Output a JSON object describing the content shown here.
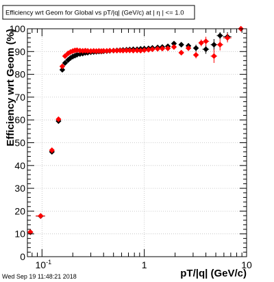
{
  "chart_data": {
    "type": "scatter",
    "title": "Efficiency wrt Geom for Global vs pT/|q| (GeV/c) at |  η | <= 1.0",
    "xlabel": "pT/|q| (GeV/c)",
    "ylabel": "Efficiency wrt Geom (%)",
    "xscale": "log",
    "xlim": [
      0.072,
      10
    ],
    "ylim": [
      0,
      100
    ],
    "x_tick_labels": [
      {
        "value": 0.1,
        "label": "10",
        "exponent": "-1"
      },
      {
        "value": 1,
        "label": "1",
        "exponent": ""
      },
      {
        "value": 10,
        "label": "10",
        "exponent": ""
      }
    ],
    "y_ticks": [
      0,
      10,
      20,
      30,
      40,
      50,
      60,
      70,
      80,
      90,
      100
    ],
    "grid": true,
    "series": [
      {
        "marker": "diamond",
        "color": "#000000",
        "points": [
          {
            "x": 0.077,
            "y": 10.7,
            "xerr": 0.003,
            "yerr": 0.6
          },
          {
            "x": 0.097,
            "y": 17.8,
            "xerr": 0.01,
            "yerr": 0.6
          },
          {
            "x": 0.125,
            "y": 46.0,
            "xerr": 0.007,
            "yerr": 0.8
          },
          {
            "x": 0.145,
            "y": 59.5,
            "xerr": 0.006,
            "yerr": 0.8
          },
          {
            "x": 0.158,
            "y": 82.0,
            "xerr": 0.005,
            "yerr": 0.8
          },
          {
            "x": 0.168,
            "y": 85.0,
            "xerr": 0.005,
            "yerr": 0.8
          },
          {
            "x": 0.18,
            "y": 86.3,
            "xerr": 0.005
          },
          {
            "x": 0.19,
            "y": 87.2,
            "xerr": 0.005
          },
          {
            "x": 0.2,
            "y": 87.8,
            "xerr": 0.005
          },
          {
            "x": 0.21,
            "y": 88.2,
            "xerr": 0.005
          },
          {
            "x": 0.22,
            "y": 88.6,
            "xerr": 0.005
          },
          {
            "x": 0.235,
            "y": 88.9,
            "xerr": 0.006
          },
          {
            "x": 0.25,
            "y": 89.1,
            "xerr": 0.006
          },
          {
            "x": 0.265,
            "y": 89.4,
            "xerr": 0.007
          },
          {
            "x": 0.28,
            "y": 89.5,
            "xerr": 0.007
          },
          {
            "x": 0.3,
            "y": 89.7,
            "xerr": 0.008
          },
          {
            "x": 0.32,
            "y": 89.8,
            "xerr": 0.008
          },
          {
            "x": 0.34,
            "y": 89.9,
            "xerr": 0.009
          },
          {
            "x": 0.36,
            "y": 90.0,
            "xerr": 0.009
          },
          {
            "x": 0.38,
            "y": 90.0,
            "xerr": 0.01
          },
          {
            "x": 0.4,
            "y": 90.1,
            "xerr": 0.01
          },
          {
            "x": 0.43,
            "y": 90.2,
            "xerr": 0.011
          },
          {
            "x": 0.46,
            "y": 90.3,
            "xerr": 0.012
          },
          {
            "x": 0.5,
            "y": 90.4,
            "xerr": 0.013
          },
          {
            "x": 0.54,
            "y": 90.5,
            "xerr": 0.014
          },
          {
            "x": 0.58,
            "y": 90.6,
            "xerr": 0.015
          },
          {
            "x": 0.62,
            "y": 90.7,
            "xerr": 0.016
          },
          {
            "x": 0.67,
            "y": 90.8,
            "xerr": 0.017
          },
          {
            "x": 0.72,
            "y": 90.9,
            "xerr": 0.019
          },
          {
            "x": 0.78,
            "y": 91.0,
            "xerr": 0.02
          },
          {
            "x": 0.85,
            "y": 91.0,
            "xerr": 0.022
          },
          {
            "x": 0.92,
            "y": 91.2,
            "xerr": 0.024
          },
          {
            "x": 1.0,
            "y": 91.3,
            "xerr": 0.03
          },
          {
            "x": 1.1,
            "y": 91.4,
            "xerr": 0.03
          },
          {
            "x": 1.2,
            "y": 91.6,
            "xerr": 0.035
          },
          {
            "x": 1.35,
            "y": 91.8,
            "xerr": 0.04
          },
          {
            "x": 1.5,
            "y": 92.0,
            "xerr": 0.05
          },
          {
            "x": 1.7,
            "y": 92.3,
            "xerr": 0.06
          },
          {
            "x": 1.95,
            "y": 93.5,
            "xerr": 0.08,
            "yerr": 0.8
          },
          {
            "x": 2.3,
            "y": 93.0,
            "xerr": 0.1,
            "yerr": 1.0
          },
          {
            "x": 2.7,
            "y": 92.5,
            "xerr": 0.15,
            "yerr": 1.2
          },
          {
            "x": 3.2,
            "y": 91.5,
            "xerr": 0.2,
            "yerr": 1.5
          },
          {
            "x": 4.0,
            "y": 91.0,
            "xerr": 0.3,
            "yerr": 2.0
          },
          {
            "x": 4.8,
            "y": 93.0,
            "xerr": 0.35,
            "yerr": 2.5
          },
          {
            "x": 5.5,
            "y": 97.0,
            "xerr": 0.4,
            "yerr": 1.5
          },
          {
            "x": 6.5,
            "y": 96.5,
            "xerr": 0.6,
            "yerr": 2.0
          }
        ]
      },
      {
        "marker": "diamond",
        "color": "#ff0000",
        "points": [
          {
            "x": 0.077,
            "y": 10.8,
            "xerr": 0.003,
            "yerr": 0.6
          },
          {
            "x": 0.097,
            "y": 17.9,
            "xerr": 0.01,
            "yerr": 0.6
          },
          {
            "x": 0.125,
            "y": 46.7,
            "xerr": 0.007,
            "yerr": 0.8
          },
          {
            "x": 0.145,
            "y": 60.3,
            "xerr": 0.006,
            "yerr": 0.8
          },
          {
            "x": 0.158,
            "y": 83.5,
            "xerr": 0.005,
            "yerr": 0.8
          },
          {
            "x": 0.168,
            "y": 88.0,
            "xerr": 0.005,
            "yerr": 0.8
          },
          {
            "x": 0.18,
            "y": 89.2,
            "xerr": 0.005
          },
          {
            "x": 0.19,
            "y": 89.8,
            "xerr": 0.005
          },
          {
            "x": 0.2,
            "y": 90.2,
            "xerr": 0.005
          },
          {
            "x": 0.21,
            "y": 90.5,
            "xerr": 0.005
          },
          {
            "x": 0.22,
            "y": 90.6,
            "xerr": 0.005
          },
          {
            "x": 0.235,
            "y": 90.4,
            "xerr": 0.006
          },
          {
            "x": 0.25,
            "y": 90.3,
            "xerr": 0.006
          },
          {
            "x": 0.265,
            "y": 90.4,
            "xerr": 0.007
          },
          {
            "x": 0.28,
            "y": 90.3,
            "xerr": 0.007
          },
          {
            "x": 0.3,
            "y": 90.2,
            "xerr": 0.008
          },
          {
            "x": 0.32,
            "y": 90.3,
            "xerr": 0.008
          },
          {
            "x": 0.34,
            "y": 90.2,
            "xerr": 0.009
          },
          {
            "x": 0.36,
            "y": 90.3,
            "xerr": 0.009
          },
          {
            "x": 0.38,
            "y": 90.2,
            "xerr": 0.01
          },
          {
            "x": 0.4,
            "y": 90.3,
            "xerr": 0.01
          },
          {
            "x": 0.43,
            "y": 90.3,
            "xerr": 0.011
          },
          {
            "x": 0.46,
            "y": 90.4,
            "xerr": 0.012
          },
          {
            "x": 0.5,
            "y": 90.4,
            "xerr": 0.013
          },
          {
            "x": 0.54,
            "y": 90.4,
            "xerr": 0.014
          },
          {
            "x": 0.58,
            "y": 90.5,
            "xerr": 0.015
          },
          {
            "x": 0.62,
            "y": 90.4,
            "xerr": 0.016
          },
          {
            "x": 0.67,
            "y": 90.5,
            "xerr": 0.017
          },
          {
            "x": 0.72,
            "y": 90.5,
            "xerr": 0.019
          },
          {
            "x": 0.78,
            "y": 90.4,
            "xerr": 0.02
          },
          {
            "x": 0.85,
            "y": 90.5,
            "xerr": 0.022
          },
          {
            "x": 0.92,
            "y": 90.4,
            "xerr": 0.024
          },
          {
            "x": 1.0,
            "y": 90.6,
            "xerr": 0.03
          },
          {
            "x": 1.1,
            "y": 90.8,
            "xerr": 0.03
          },
          {
            "x": 1.2,
            "y": 91.0,
            "xerr": 0.035
          },
          {
            "x": 1.35,
            "y": 91.2,
            "xerr": 0.04
          },
          {
            "x": 1.5,
            "y": 91.3,
            "xerr": 0.05
          },
          {
            "x": 1.7,
            "y": 91.4,
            "xerr": 0.06
          },
          {
            "x": 1.95,
            "y": 92.0,
            "xerr": 0.08,
            "yerr": 0.8
          },
          {
            "x": 2.3,
            "y": 89.5,
            "xerr": 0.1,
            "yerr": 1.0
          },
          {
            "x": 2.7,
            "y": 91.5,
            "xerr": 0.15,
            "yerr": 1.2
          },
          {
            "x": 3.2,
            "y": 88.5,
            "xerr": 0.2,
            "yerr": 1.5
          },
          {
            "x": 3.6,
            "y": 93.8,
            "xerr": 0.2,
            "yerr": 1.5
          },
          {
            "x": 4.0,
            "y": 94.5,
            "xerr": 0.3,
            "yerr": 2.0
          },
          {
            "x": 4.8,
            "y": 88.0,
            "xerr": 0.35,
            "yerr": 3.0
          },
          {
            "x": 5.5,
            "y": 93.0,
            "xerr": 0.4,
            "yerr": 2.5
          },
          {
            "x": 6.5,
            "y": 96.0,
            "xerr": 0.6,
            "yerr": 2.0
          },
          {
            "x": 8.8,
            "y": 100.0,
            "xerr": 0.8,
            "yerr": 0.5
          }
        ]
      }
    ]
  },
  "footer": {
    "timestamp": "Wed Sep 19 11:48:21 2018"
  }
}
